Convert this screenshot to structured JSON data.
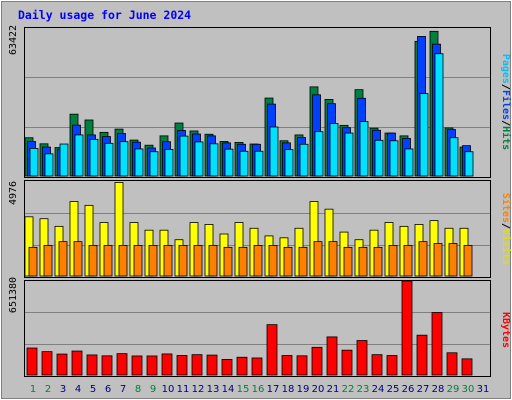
{
  "chart_data": [
    {
      "type": "bar",
      "title": "Daily usage for June 2024",
      "categories": [
        "1",
        "2",
        "3",
        "4",
        "5",
        "6",
        "7",
        "8",
        "9",
        "10",
        "11",
        "12",
        "13",
        "14",
        "15",
        "16",
        "17",
        "18",
        "19",
        "20",
        "21",
        "22",
        "23",
        "24",
        "25",
        "26",
        "27",
        "28",
        "29",
        "30",
        "31"
      ],
      "weekend_categories": [
        "1",
        "2",
        "8",
        "9",
        "15",
        "16",
        "22",
        "23",
        "29",
        "30"
      ],
      "ymax_label": "63422",
      "ylim": [
        0,
        63422
      ],
      "legend": [
        "Pages",
        "Files",
        "Hits"
      ],
      "series": [
        {
          "name": "Hits",
          "color": "#008040",
          "values": [
            16400,
            13800,
            12200,
            26500,
            24000,
            18700,
            20100,
            15400,
            13200,
            17200,
            22700,
            19300,
            17900,
            14800,
            14400,
            13700,
            33400,
            15100,
            17600,
            38200,
            32800,
            21700,
            37000,
            20500,
            18400,
            17200,
            57700,
            62000,
            20600,
            12400,
            0
          ]
        },
        {
          "name": "Files",
          "color": "#0040ff",
          "values": [
            14800,
            12400,
            11500,
            21800,
            17600,
            16900,
            18200,
            14500,
            12000,
            14700,
            19500,
            18000,
            17200,
            14200,
            13600,
            13600,
            30800,
            14200,
            16500,
            34800,
            31000,
            20700,
            33300,
            19600,
            18400,
            16100,
            59800,
            56500,
            19900,
            13000,
            0
          ]
        },
        {
          "name": "Pages",
          "color": "#00e0ff",
          "values": [
            11800,
            9500,
            13700,
            17600,
            15700,
            14000,
            14700,
            11600,
            10400,
            11400,
            17100,
            14600,
            13800,
            11500,
            10600,
            10600,
            21000,
            11300,
            13600,
            19000,
            22500,
            18400,
            23300,
            15300,
            15100,
            11600,
            35300,
            52400,
            16400,
            10400,
            0
          ]
        }
      ]
    },
    {
      "type": "bar",
      "categories": [
        "1",
        "2",
        "3",
        "4",
        "5",
        "6",
        "7",
        "8",
        "9",
        "10",
        "11",
        "12",
        "13",
        "14",
        "15",
        "16",
        "17",
        "18",
        "19",
        "20",
        "21",
        "22",
        "23",
        "24",
        "25",
        "26",
        "27",
        "28",
        "29",
        "30",
        "31"
      ],
      "ymax_label": "4976",
      "ylim": [
        0,
        4976
      ],
      "legend": [
        "Sites",
        "Visits"
      ],
      "series": [
        {
          "name": "Visits",
          "color": "#ffff00",
          "values": [
            3100,
            3000,
            2600,
            3900,
            3700,
            2800,
            4900,
            2800,
            2400,
            2400,
            1900,
            2800,
            2700,
            2200,
            2800,
            2500,
            2100,
            2000,
            2500,
            3900,
            3500,
            2300,
            1900,
            2400,
            2800,
            2600,
            2700,
            2900,
            2500,
            2500,
            0
          ]
        },
        {
          "name": "Sites",
          "color": "#ff8000",
          "values": [
            1500,
            1600,
            1800,
            1800,
            1600,
            1600,
            1600,
            1600,
            1600,
            1600,
            1600,
            1600,
            1600,
            1500,
            1500,
            1600,
            1600,
            1500,
            1500,
            1800,
            1800,
            1500,
            1500,
            1500,
            1600,
            1600,
            1800,
            1700,
            1700,
            1600,
            0
          ]
        }
      ]
    },
    {
      "type": "bar",
      "categories": [
        "1",
        "2",
        "3",
        "4",
        "5",
        "6",
        "7",
        "8",
        "9",
        "10",
        "11",
        "12",
        "13",
        "14",
        "15",
        "16",
        "17",
        "18",
        "19",
        "20",
        "21",
        "22",
        "23",
        "24",
        "25",
        "26",
        "27",
        "28",
        "29",
        "30",
        "31"
      ],
      "ymax_label": "651380",
      "ylim": [
        0,
        651380
      ],
      "legend": [
        "KBytes"
      ],
      "series": [
        {
          "name": "KBytes",
          "color": "#ff0000",
          "values": [
            187000,
            162000,
            145000,
            166000,
            139000,
            133000,
            148000,
            132000,
            132000,
            146000,
            135000,
            141000,
            138000,
            108000,
            123000,
            118000,
            349000,
            135000,
            133000,
            192000,
            264000,
            172000,
            239000,
            141000,
            135000,
            651380,
            276000,
            433000,
            154000,
            112000,
            0
          ]
        }
      ]
    }
  ],
  "colors": {
    "background": "#c0c0c0",
    "plot_background": "#c0c0c0",
    "grid": "#808080",
    "title": "#0000ff",
    "day_weekday": "#000080",
    "day_weekend": "#008040",
    "separator": "#000000",
    "label_pages": "#00c0ff",
    "label_files": "#0040ff",
    "label_hits": "#008040",
    "label_sites": "#ff8000",
    "label_visits": "#e0e000",
    "label_kbytes": "#ff0000"
  }
}
